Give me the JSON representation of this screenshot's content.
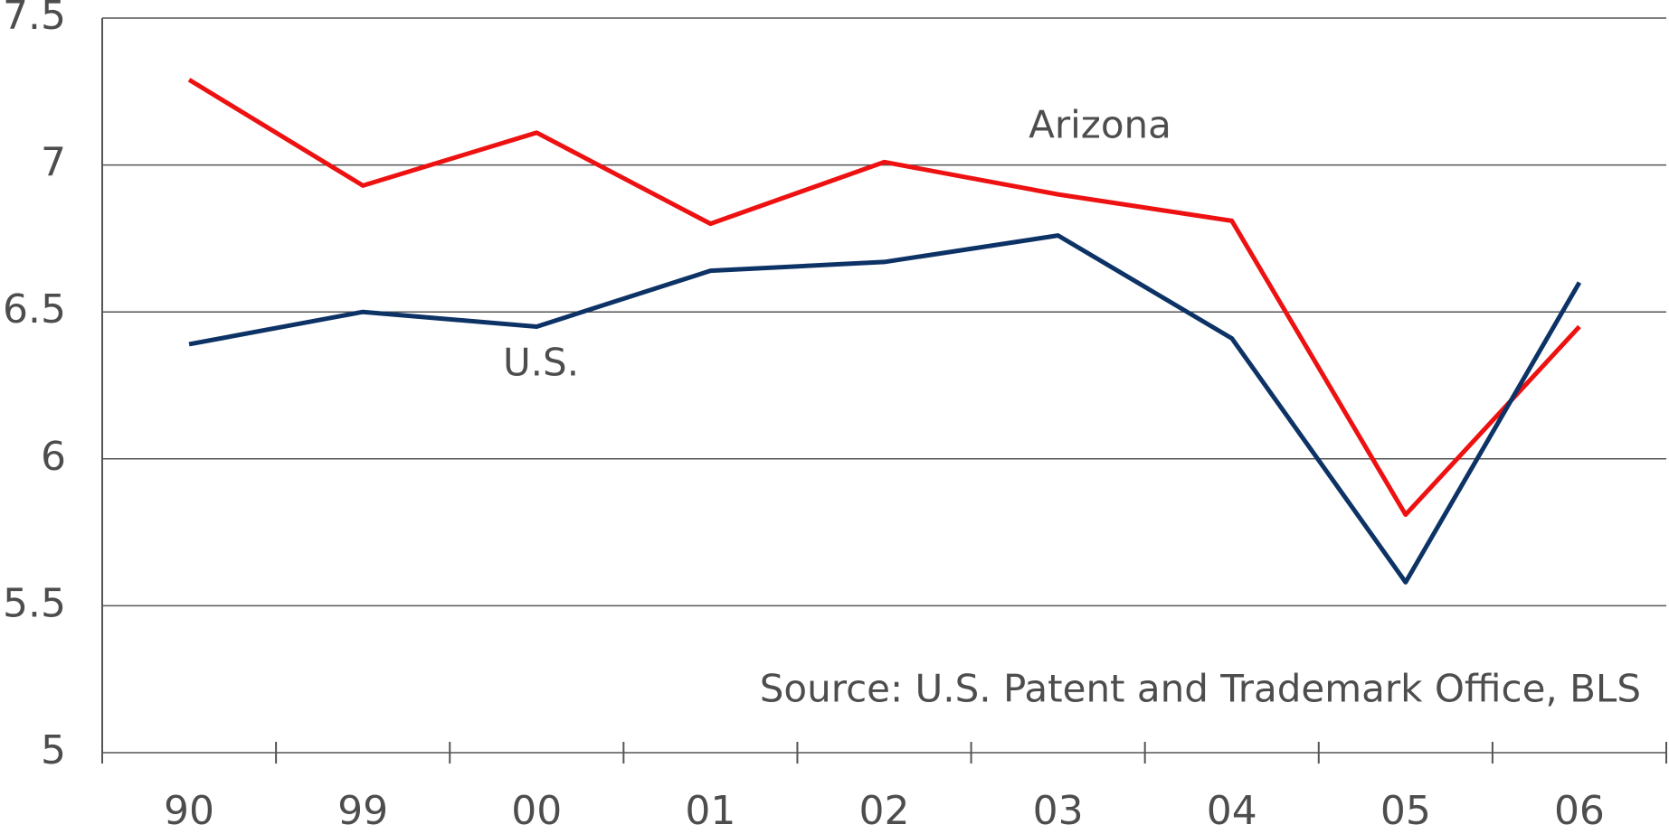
{
  "chart_data": {
    "type": "line",
    "categories": [
      "90",
      "99",
      "00",
      "01",
      "02",
      "03",
      "04",
      "05",
      "06"
    ],
    "series": [
      {
        "name": "Arizona",
        "color": "#ee1111",
        "values": [
          7.29,
          6.93,
          7.11,
          6.8,
          7.01,
          6.9,
          6.81,
          5.81,
          6.45
        ]
      },
      {
        "name": "U.S.",
        "color": "#0d3366",
        "values": [
          6.39,
          6.5,
          6.45,
          6.64,
          6.67,
          6.76,
          6.41,
          5.58,
          6.6
        ]
      }
    ],
    "annotations": [
      "Source: U.S. Patent and Trademark Office, BLS"
    ],
    "ylim": [
      5,
      7.5
    ],
    "yticks": [
      5,
      5.5,
      6,
      6.5,
      7,
      7.5
    ],
    "grid": true
  }
}
